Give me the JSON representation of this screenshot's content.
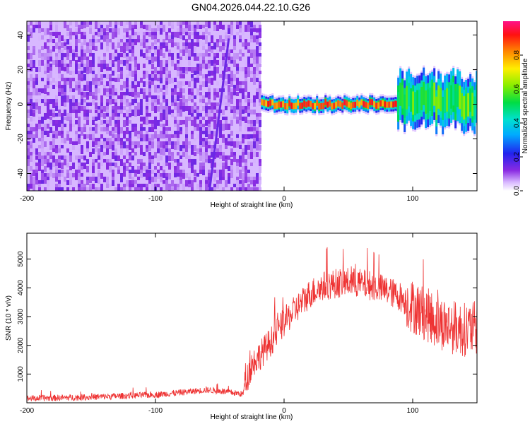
{
  "title": "GN04.2026.044.22.10.G26",
  "colors": {
    "snr_line": "#ee3333",
    "spectral_low": "#aa66ff",
    "spectral_high": "#ff2255"
  },
  "chart_data": [
    {
      "type": "heatmap",
      "xlabel": "Height of straight line (km)",
      "ylabel": "Frequency (Hz)",
      "xlim": [
        -200,
        150
      ],
      "ylim": [
        -50,
        48
      ],
      "xticks": [
        -200,
        -100,
        0,
        100
      ],
      "yticks": [
        -40,
        -20,
        0,
        20,
        40
      ],
      "colorbar": {
        "label": "Normalized spectral amplitude",
        "range": [
          0,
          1
        ],
        "ticks": [
          "0.0",
          "0.2",
          "0.4",
          "0.6",
          "0.8"
        ],
        "colormap": "rainbow (purple → blue → cyan → green → yellow → red → magenta)"
      },
      "regions": [
        {
          "x_range": [
            -200,
            -18
          ],
          "freq_range": [
            -50,
            48
          ],
          "amplitude": 0.05
        },
        {
          "x_range": [
            -18,
            88
          ],
          "freq_range": [
            -4,
            4
          ],
          "center_freq": 0,
          "amplitude": 0.85
        },
        {
          "x_range": [
            88,
            150
          ],
          "freq_range": [
            -15,
            15
          ],
          "center_freq": 2,
          "amplitude": 0.55
        }
      ],
      "streak": {
        "x": [
          -58,
          -43
        ],
        "freq": [
          -50,
          38
        ],
        "amplitude": 0.15
      }
    },
    {
      "type": "line",
      "xlabel": "Height of straight line (km)",
      "ylabel": "SNR (10 * v/v)",
      "xlim": [
        -200,
        150
      ],
      "ylim": [
        0,
        5900
      ],
      "xticks": [
        -200,
        -100,
        0,
        100
      ],
      "yticks": [
        1000,
        2000,
        3000,
        4000,
        5000
      ],
      "series": [
        {
          "x": [
            -200,
            -150,
            -100,
            -75,
            -60,
            -45,
            -32,
            -30,
            -25,
            -18,
            -10,
            0,
            10,
            20,
            30,
            40,
            50,
            60,
            70,
            80,
            90,
            100,
            110,
            120,
            130,
            140,
            150
          ],
          "y": [
            150,
            200,
            280,
            380,
            450,
            380,
            300,
            700,
            1350,
            1700,
            2150,
            2800,
            3300,
            3800,
            4050,
            4150,
            4200,
            4150,
            4050,
            3900,
            3700,
            3350,
            3100,
            2800,
            2650,
            2550,
            2600
          ]
        }
      ]
    }
  ]
}
